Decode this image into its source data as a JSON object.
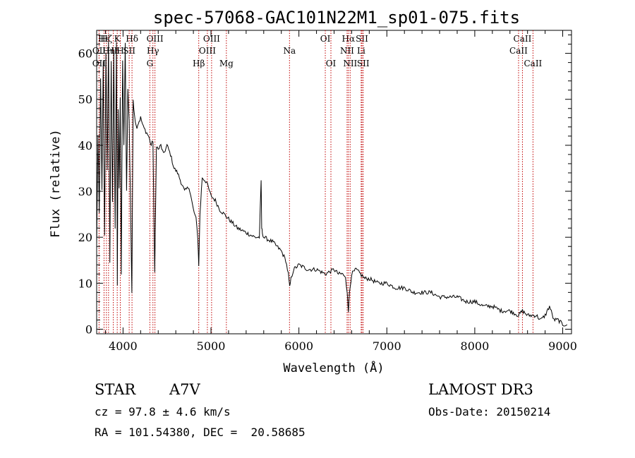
{
  "chart_data": {
    "type": "line",
    "title": "spec-57068-GAC101N22M1_sp01-075.fits",
    "xlabel": "Wavelength (Å)",
    "ylabel": "Flux (relative)",
    "xlim": [
      3700,
      9100
    ],
    "ylim": [
      -1,
      65
    ],
    "xticks": [
      4000,
      5000,
      6000,
      7000,
      8000,
      9000
    ],
    "yticks": [
      0,
      10,
      20,
      30,
      40,
      50,
      60
    ],
    "grid": false,
    "series": [
      {
        "name": "flux",
        "x": [
          3700,
          3715,
          3730,
          3745,
          3760,
          3775,
          3790,
          3805,
          3820,
          3835,
          3850,
          3865,
          3880,
          3895,
          3910,
          3925,
          3935,
          3945,
          3955,
          3968,
          3980,
          3995,
          4010,
          4025,
          4040,
          4055,
          4070,
          4085,
          4100,
          4115,
          4130,
          4150,
          4175,
          4200,
          4230,
          4260,
          4290,
          4320,
          4340,
          4360,
          4380,
          4400,
          4430,
          4460,
          4500,
          4540,
          4580,
          4620,
          4660,
          4700,
          4750,
          4800,
          4830,
          4850,
          4861,
          4875,
          4900,
          4950,
          5000,
          5050,
          5100,
          5150,
          5200,
          5300,
          5400,
          5500,
          5550,
          5570,
          5577,
          5585,
          5600,
          5700,
          5800,
          5850,
          5880,
          5895,
          5910,
          5940,
          6000,
          6100,
          6200,
          6300,
          6400,
          6450,
          6500,
          6530,
          6550,
          6563,
          6575,
          6600,
          6650,
          6700,
          6750,
          6800,
          6900,
          7000,
          7100,
          7200,
          7300,
          7400,
          7500,
          7600,
          7700,
          7800,
          7900,
          8000,
          8100,
          8200,
          8300,
          8400,
          8498,
          8542,
          8600,
          8662,
          8700,
          8750,
          8800,
          8850,
          8900,
          8950,
          9000,
          9050
        ],
        "values": [
          18,
          42,
          25,
          55,
          30,
          58,
          20,
          60,
          35,
          62,
          15,
          58,
          28,
          60,
          22,
          62,
          10,
          48,
          30,
          50,
          12,
          58,
          40,
          62,
          30,
          52,
          45,
          28,
          8,
          50,
          47,
          44,
          45,
          46,
          44,
          43,
          42,
          40,
          41,
          12,
          40,
          39,
          40,
          38,
          40,
          38,
          35,
          34,
          32,
          30,
          31,
          26,
          24,
          20,
          14,
          25,
          33,
          32,
          29,
          28,
          26,
          25,
          24,
          22,
          21,
          20,
          20,
          32,
          22,
          21,
          20,
          19,
          17,
          15,
          12,
          9,
          11,
          13,
          14,
          13,
          13,
          12,
          13,
          12,
          12,
          11,
          8,
          4,
          8,
          12,
          13,
          12,
          11,
          11,
          10,
          10,
          9,
          9,
          8,
          8,
          8,
          7,
          7,
          7,
          6,
          6,
          5,
          5,
          4,
          4,
          3,
          4,
          3,
          3,
          3,
          2,
          3,
          5,
          2,
          2,
          1,
          1
        ]
      }
    ],
    "line_markers": [
      {
        "label": "Hε",
        "x": 3784,
        "row": 0
      },
      {
        "label": "Hζ",
        "x": 3810,
        "row": 0
      },
      {
        "label": "K",
        "x": 3934,
        "row": 0
      },
      {
        "label": "Hδ",
        "x": 4102,
        "row": 0
      },
      {
        "label": "OII",
        "x": 3728,
        "row": 1
      },
      {
        "label": "Hη",
        "x": 3835,
        "row": 1
      },
      {
        "label": "Hh",
        "x": 3889,
        "row": 1
      },
      {
        "label": "H",
        "x": 3969,
        "row": 1
      },
      {
        "label": "SII",
        "x": 4070,
        "row": 1
      },
      {
        "label": "OIII",
        "x": 4363,
        "row": 0
      },
      {
        "label": "Hγ",
        "x": 4340,
        "row": 1
      },
      {
        "label": "G",
        "x": 4305,
        "row": 2
      },
      {
        "label": "OII",
        "x": 3727,
        "row": 2
      },
      {
        "label": "Hβ",
        "x": 4861,
        "row": 2
      },
      {
        "label": "OIII",
        "x": 5007,
        "row": 0
      },
      {
        "label": "OIII",
        "x": 4959,
        "row": 1
      },
      {
        "label": "Mg",
        "x": 5175,
        "row": 2
      },
      {
        "label": "Na",
        "x": 5893,
        "row": 1
      },
      {
        "label": "OI",
        "x": 6300,
        "row": 0
      },
      {
        "label": "OI",
        "x": 6364,
        "row": 2
      },
      {
        "label": "Hα",
        "x": 6563,
        "row": 0
      },
      {
        "label": "NII",
        "x": 6548,
        "row": 1
      },
      {
        "label": "NII",
        "x": 6583,
        "row": 2
      },
      {
        "label": "SII",
        "x": 6717,
        "row": 0
      },
      {
        "label": "Li",
        "x": 6708,
        "row": 1
      },
      {
        "label": "SII",
        "x": 6731,
        "row": 2
      },
      {
        "label": "CaII",
        "x": 8542,
        "row": 0
      },
      {
        "label": "CaII",
        "x": 8498,
        "row": 1
      },
      {
        "label": "CaII",
        "x": 8662,
        "row": 2
      }
    ]
  },
  "info": {
    "object_class": "STAR",
    "subclass": "A7V",
    "survey": "LAMOST DR3",
    "cz": "cz = 97.8 ± 4.6 km/s",
    "obs_date": "Obs-Date: 20150214",
    "coords": "RA = 101.54380, DEC =  20.58685"
  }
}
